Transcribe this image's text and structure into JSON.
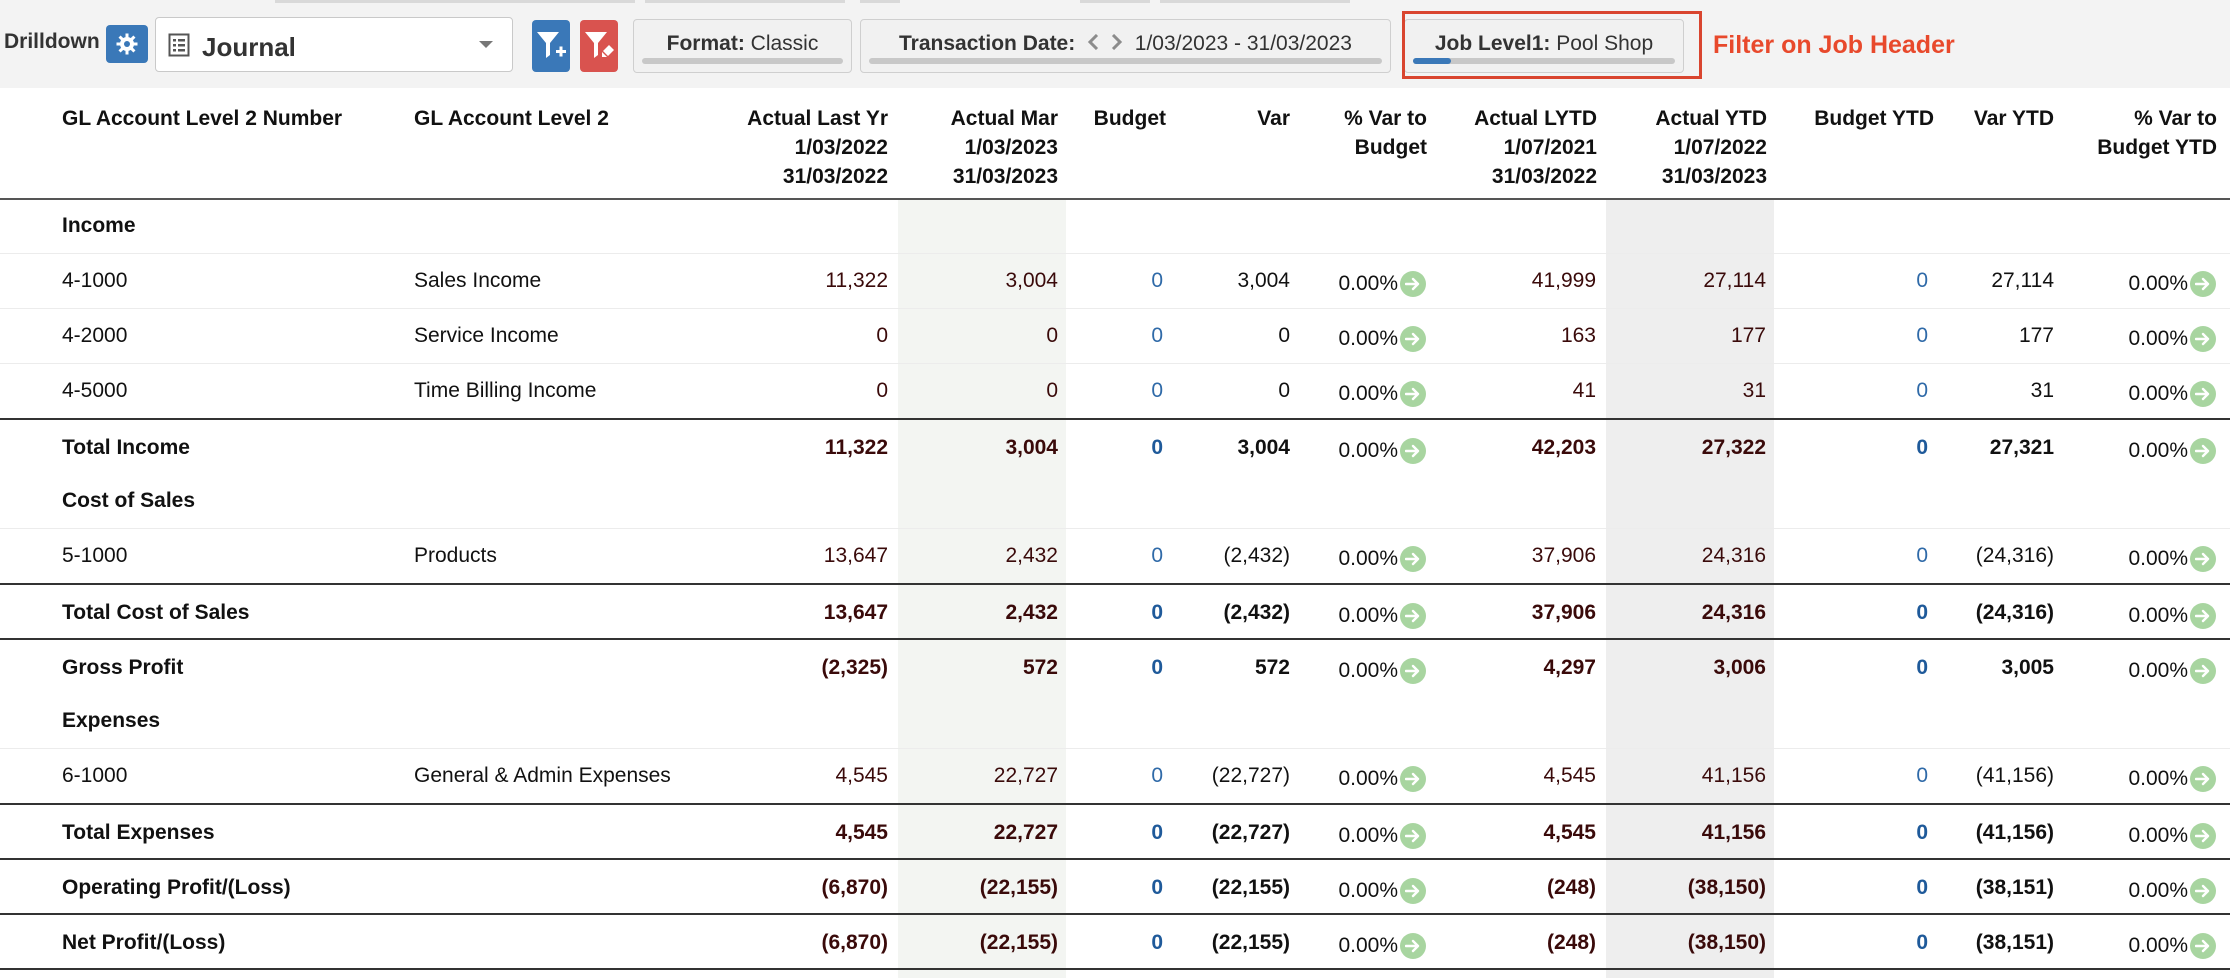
{
  "toolbar": {
    "drilldown_label": "Drilldown",
    "journal_select_value": "Journal",
    "format_label": "Format:",
    "format_value": "Classic",
    "date_label": "Transaction Date:",
    "date_value": "1/03/2023 - 31/03/2023",
    "job_label": "Job Level1:",
    "job_value": "Pool Shop",
    "callout": "Filter on Job Header",
    "icons": {
      "gear": "gear-icon",
      "document": "document-icon",
      "caret": "chevron-down-icon",
      "filter_add": "filter-add-icon",
      "filter_clear": "filter-clear-icon",
      "prev": "chevron-left-icon",
      "next": "chevron-right-icon",
      "go": "arrow-right-icon"
    },
    "colors": {
      "primary_button": "#3a78b8",
      "danger_button": "#d9534f",
      "callout": "#e8492c",
      "pct_arrow": "#a8d5a0"
    }
  },
  "columns": {
    "acct_number": [
      "GL Account Level 2 Number"
    ],
    "acct_name": [
      "GL Account Level 2"
    ],
    "actual_last_yr": [
      "Actual Last Yr",
      "1/03/2022",
      "31/03/2022"
    ],
    "actual_mar": [
      "Actual Mar",
      "1/03/2023",
      "31/03/2023"
    ],
    "budget": [
      "Budget"
    ],
    "var": [
      "Var"
    ],
    "pct_var_budget": [
      "% Var to",
      "Budget"
    ],
    "actual_lytd": [
      "Actual LYTD",
      "1/07/2021",
      "31/03/2022"
    ],
    "actual_ytd": [
      "Actual YTD",
      "1/07/2022",
      "31/03/2023"
    ],
    "budget_ytd": [
      "Budget YTD"
    ],
    "var_ytd": [
      "Var YTD"
    ],
    "pct_var_budget_ytd": [
      "% Var to",
      "Budget YTD"
    ]
  },
  "rows": [
    {
      "label": "Income"
    },
    {
      "number": "4-1000",
      "name": "Sales Income",
      "v": [
        "11,322",
        "3,004",
        "0",
        "3,004",
        "0.00%",
        "41,999",
        "27,114",
        "0",
        "27,114",
        "0.00%"
      ]
    },
    {
      "number": "4-2000",
      "name": "Service Income",
      "v": [
        "0",
        "0",
        "0",
        "0",
        "0.00%",
        "163",
        "177",
        "0",
        "177",
        "0.00%"
      ]
    },
    {
      "number": "4-5000",
      "name": "Time Billing Income",
      "v": [
        "0",
        "0",
        "0",
        "0",
        "0.00%",
        "41",
        "31",
        "0",
        "31",
        "0.00%"
      ]
    },
    {
      "label": "Total Income",
      "v": [
        "11,322",
        "3,004",
        "0",
        "3,004",
        "0.00%",
        "42,203",
        "27,322",
        "0",
        "27,321",
        "0.00%"
      ]
    },
    {
      "label": "Cost of Sales"
    },
    {
      "number": "5-1000",
      "name": "Products",
      "v": [
        "13,647",
        "2,432",
        "0",
        "(2,432)",
        "0.00%",
        "37,906",
        "24,316",
        "0",
        "(24,316)",
        "0.00%"
      ]
    },
    {
      "label": "Total Cost of Sales",
      "v": [
        "13,647",
        "2,432",
        "0",
        "(2,432)",
        "0.00%",
        "37,906",
        "24,316",
        "0",
        "(24,316)",
        "0.00%"
      ]
    },
    {
      "label": "Gross Profit",
      "v": [
        "(2,325)",
        "572",
        "0",
        "572",
        "0.00%",
        "4,297",
        "3,006",
        "0",
        "3,005",
        "0.00%"
      ]
    },
    {
      "label": "Expenses"
    },
    {
      "number": "6-1000",
      "name": "General & Admin Expenses",
      "v": [
        "4,545",
        "22,727",
        "0",
        "(22,727)",
        "0.00%",
        "4,545",
        "41,156",
        "0",
        "(41,156)",
        "0.00%"
      ]
    },
    {
      "label": "Total Expenses",
      "v": [
        "4,545",
        "22,727",
        "0",
        "(22,727)",
        "0.00%",
        "4,545",
        "41,156",
        "0",
        "(41,156)",
        "0.00%"
      ]
    },
    {
      "label": "Operating Profit/(Loss)",
      "v": [
        "(6,870)",
        "(22,155)",
        "0",
        "(22,155)",
        "0.00%",
        "(248)",
        "(38,150)",
        "0",
        "(38,151)",
        "0.00%"
      ]
    },
    {
      "label": "Net Profit/(Loss)",
      "v": [
        "(6,870)",
        "(22,155)",
        "0",
        "(22,155)",
        "0.00%",
        "(248)",
        "(38,150)",
        "0",
        "(38,151)",
        "0.00%"
      ]
    }
  ]
}
